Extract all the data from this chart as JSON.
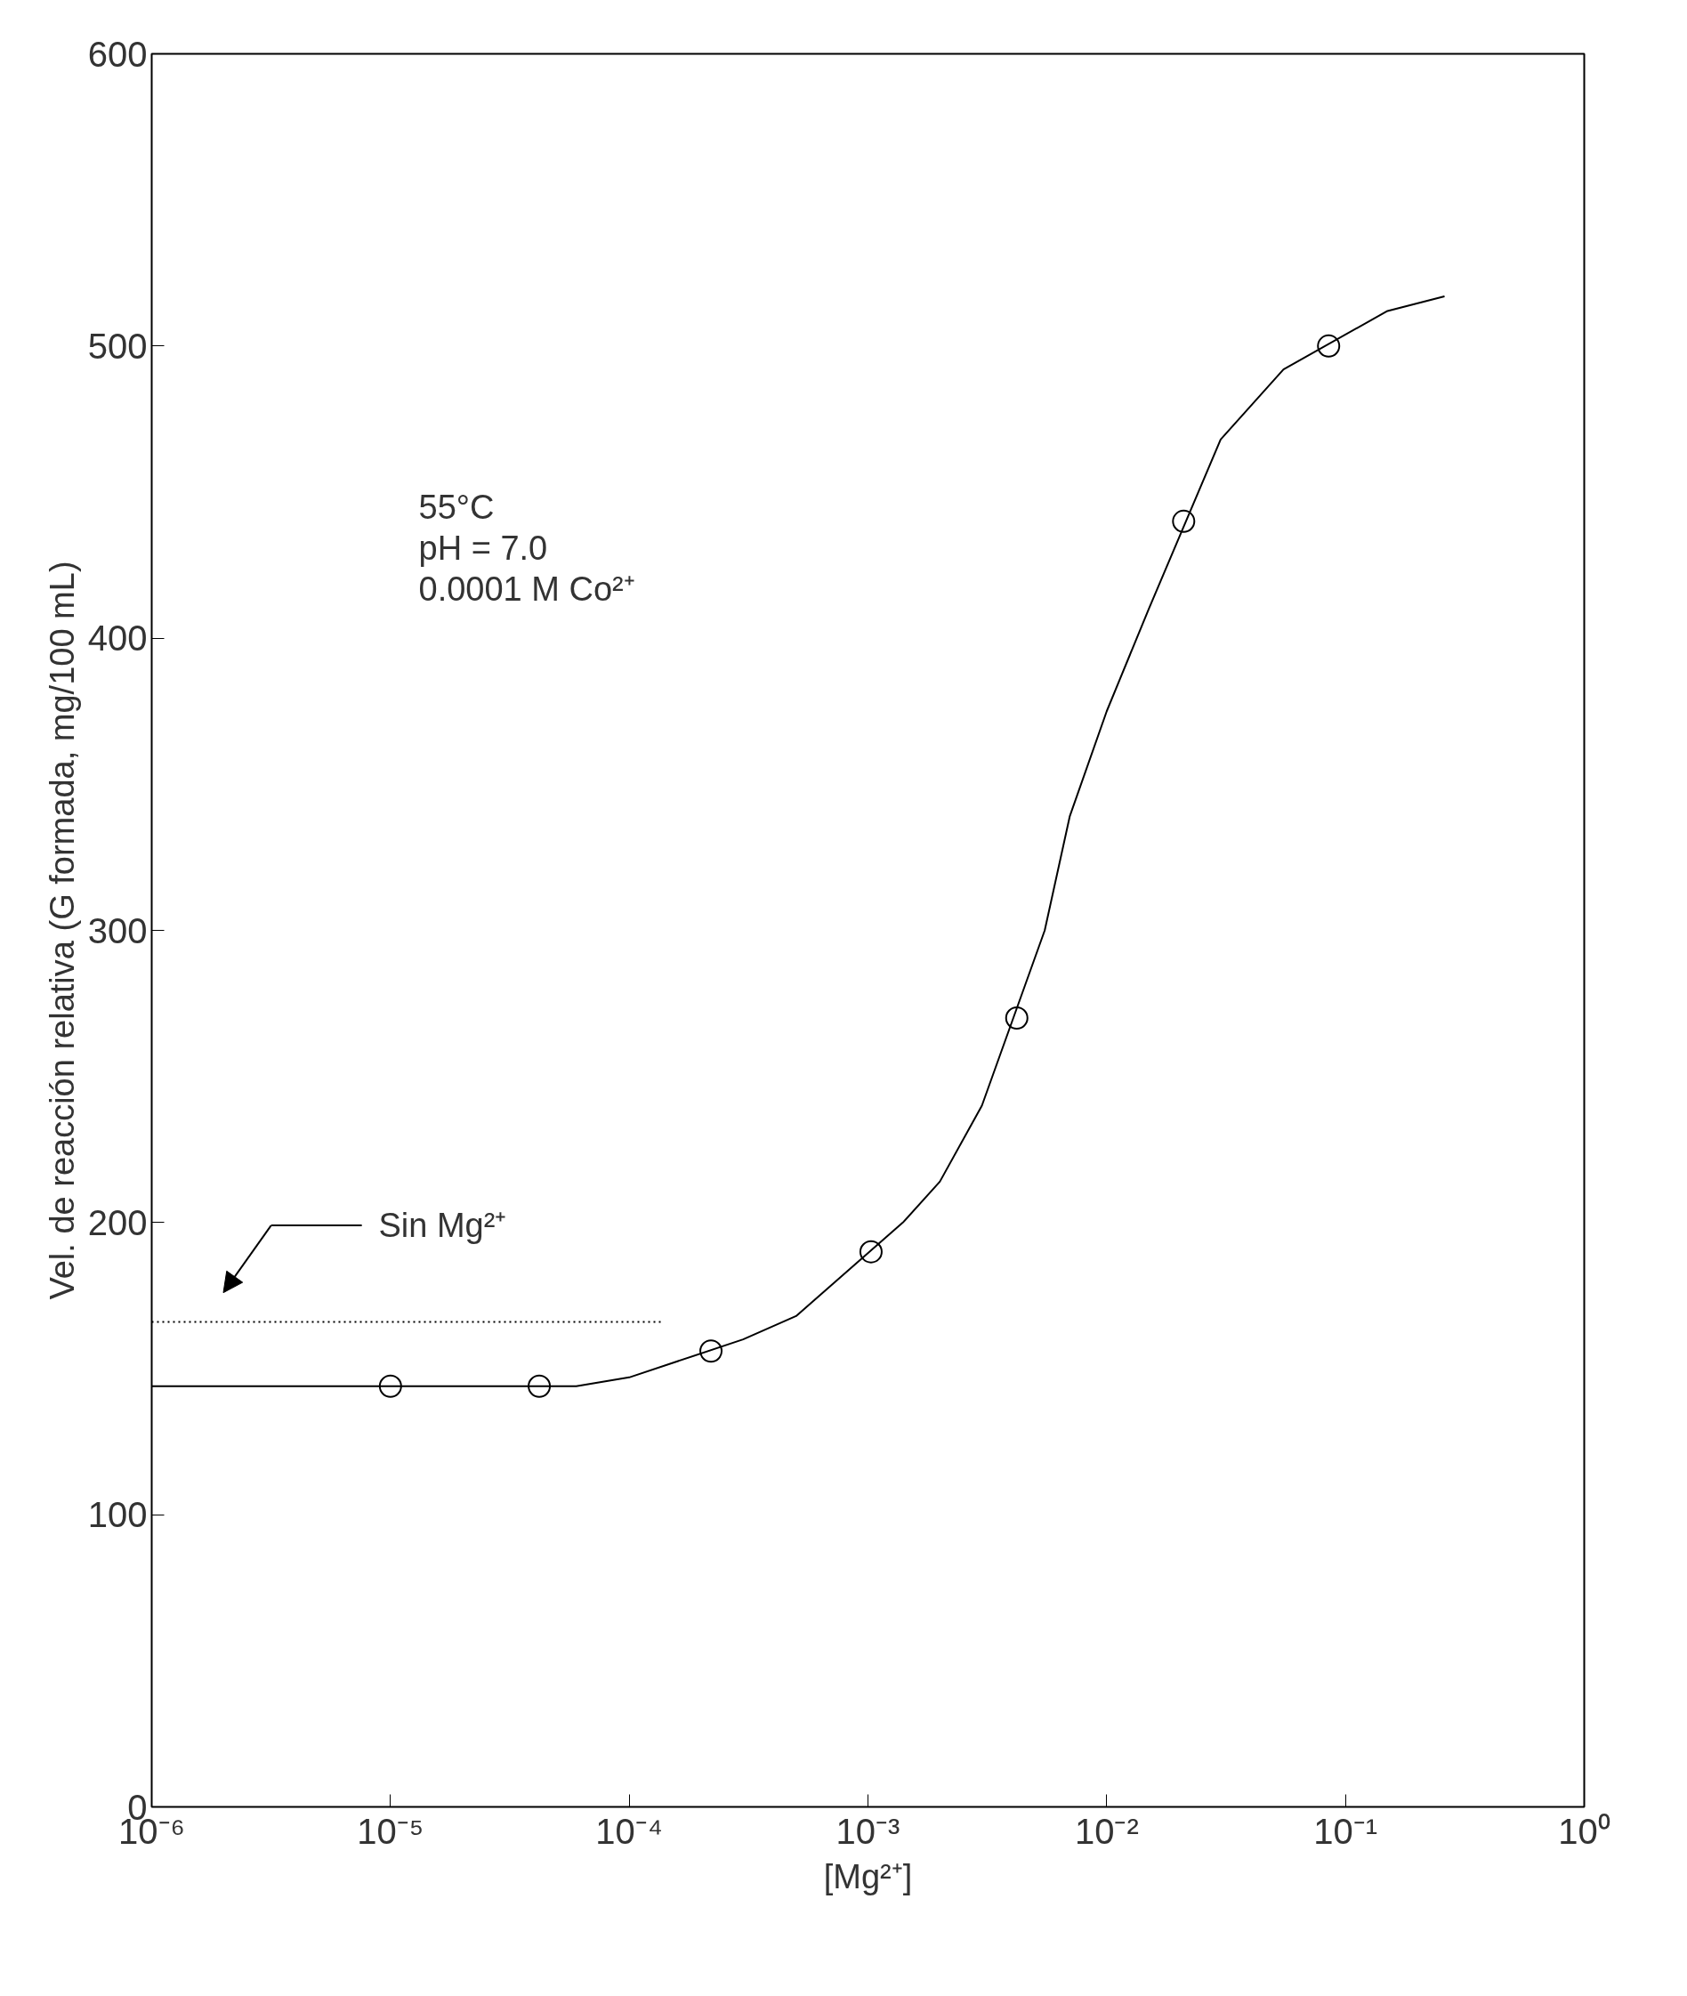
{
  "chart_data": {
    "type": "line",
    "xlabel": "[Mg²⁺]",
    "ylabel": "Vel. de reacción relativa (G formada, mg/100 mL)",
    "annotations": [
      "55°C",
      "pH = 7.0",
      "0.0001 M Co²⁺"
    ],
    "log": "x",
    "grid": false,
    "xlim": [
      1e-06,
      1
    ],
    "ylim": [
      0,
      600
    ],
    "xticks": [
      {
        "value": 1e-06,
        "label": "10⁻⁶"
      },
      {
        "value": 1e-05,
        "label": "10⁻⁵"
      },
      {
        "value": 0.0001,
        "label": "10⁻⁴"
      },
      {
        "value": 0.001,
        "label": "10⁻³"
      },
      {
        "value": 0.01,
        "label": "10⁻²"
      },
      {
        "value": 0.1,
        "label": "10⁻¹"
      },
      {
        "value": 1,
        "label": "10⁰"
      }
    ],
    "yticks": [
      0,
      100,
      200,
      300,
      400,
      500,
      600
    ],
    "series": [
      {
        "color": "#000000",
        "line_style": "solid",
        "marker": "none",
        "x": [
          1e-06,
          3e-06,
          2e-05,
          6e-05,
          0.0001,
          0.0003,
          0.0005,
          0.0014,
          0.002,
          0.003,
          0.0055,
          0.007,
          0.01,
          0.015,
          0.03,
          0.055,
          0.15,
          0.26
        ],
        "values": [
          144,
          144,
          144,
          144,
          147,
          160,
          168,
          200,
          214,
          240,
          300,
          339,
          375,
          410,
          468,
          492,
          512,
          517
        ]
      },
      {
        "type": "scatter",
        "color": "#000000",
        "marker": "circle",
        "x": [
          1e-05,
          4.2e-05,
          0.00022,
          0.00103,
          0.0042,
          0.021,
          0.085
        ],
        "values": [
          144,
          144,
          156,
          190,
          270,
          440,
          500
        ]
      },
      {
        "type": "line",
        "name": "Sin Mg²⁺",
        "color": "#000000",
        "line_style": "dotted",
        "marker": "none",
        "x": [
          1e-06,
          0.00014
        ],
        "values": [
          166,
          166
        ]
      }
    ]
  }
}
